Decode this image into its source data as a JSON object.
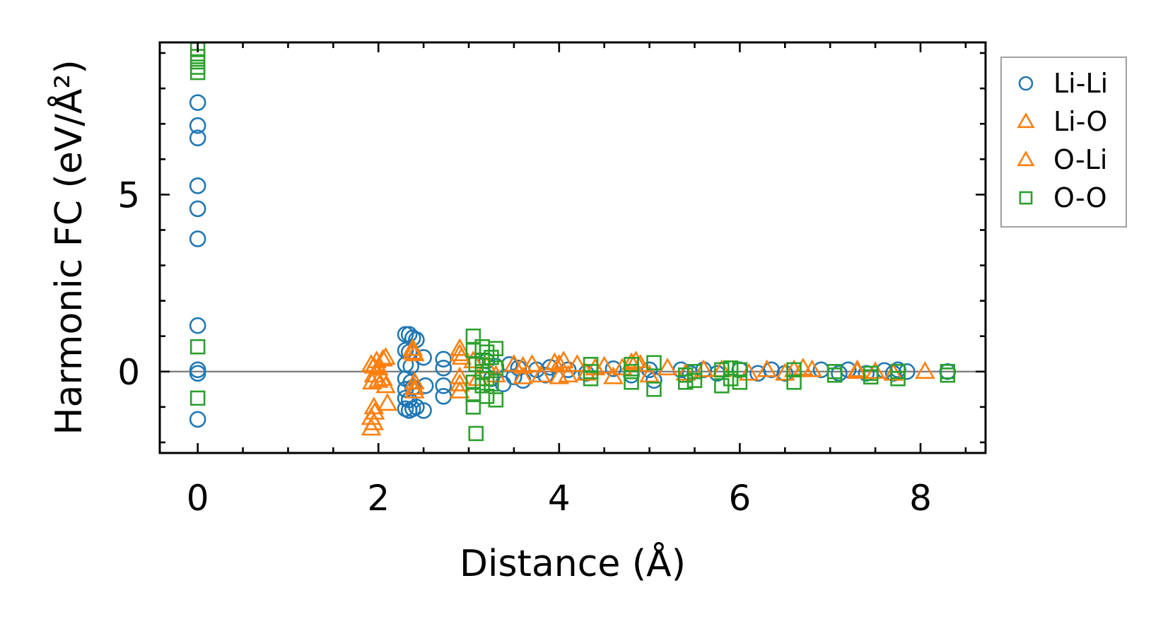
{
  "chart_data": {
    "type": "scatter",
    "title": "",
    "xlabel": "Distance (Å)",
    "ylabel": "Harmonic FC (eV/Å²)",
    "xlim": [
      -0.42,
      8.72
    ],
    "ylim": [
      -2.3,
      9.3
    ],
    "xticks": [
      "0",
      "2",
      "4",
      "6",
      "8"
    ],
    "yticks": [
      "0",
      "5"
    ],
    "grid": false,
    "zero_line": true,
    "legend_position": "outside-right",
    "colors": {
      "blue": "#1f77b4",
      "orange": "#ff7f0e",
      "green": "#2ca02c",
      "zero": "#808080"
    },
    "series": [
      {
        "name": "Li-Li",
        "marker": "circle",
        "color": "#1f77b4",
        "points": [
          [
            0,
            7.6
          ],
          [
            0,
            6.95
          ],
          [
            0,
            6.6
          ],
          [
            0,
            5.25
          ],
          [
            0,
            4.6
          ],
          [
            0,
            3.75
          ],
          [
            0,
            1.3
          ],
          [
            0,
            0.05
          ],
          [
            0,
            -0.05
          ],
          [
            0,
            -1.35
          ],
          [
            2.3,
            1.05
          ],
          [
            2.34,
            1.05
          ],
          [
            2.38,
            0.95
          ],
          [
            2.42,
            0.9
          ],
          [
            2.3,
            0.6
          ],
          [
            2.34,
            0.55
          ],
          [
            2.3,
            0.2
          ],
          [
            2.36,
            0.15
          ],
          [
            2.3,
            -0.2
          ],
          [
            2.36,
            -0.3
          ],
          [
            2.3,
            -0.5
          ],
          [
            2.38,
            -0.45
          ],
          [
            2.3,
            -0.75
          ],
          [
            2.34,
            -0.8
          ],
          [
            2.3,
            -1.05
          ],
          [
            2.34,
            -1.1
          ],
          [
            2.38,
            -1.05
          ],
          [
            2.42,
            -1.0
          ],
          [
            2.5,
            0.4
          ],
          [
            2.52,
            -0.4
          ],
          [
            2.5,
            -1.1
          ],
          [
            2.72,
            0.35
          ],
          [
            2.72,
            0.1
          ],
          [
            2.72,
            -0.4
          ],
          [
            2.72,
            -0.7
          ],
          [
            3.2,
            0.3
          ],
          [
            3.25,
            -0.2
          ],
          [
            3.3,
            0.15
          ],
          [
            3.38,
            -0.35
          ],
          [
            3.45,
            0.2
          ],
          [
            3.5,
            -0.15
          ],
          [
            3.55,
            0.1
          ],
          [
            3.6,
            -0.25
          ],
          [
            3.75,
            0.05
          ],
          [
            3.85,
            -0.1
          ],
          [
            3.9,
            0.12
          ],
          [
            4.1,
            0.05
          ],
          [
            4.3,
            -0.05
          ],
          [
            4.6,
            0.08
          ],
          [
            4.8,
            -0.1
          ],
          [
            5.0,
            0.05
          ],
          [
            5.05,
            -0.25
          ],
          [
            5.35,
            0.05
          ],
          [
            5.45,
            -0.05
          ],
          [
            5.6,
            0.05
          ],
          [
            5.75,
            -0.05
          ],
          [
            6.0,
            0.05
          ],
          [
            6.2,
            -0.05
          ],
          [
            6.35,
            0.05
          ],
          [
            6.5,
            -0.05
          ],
          [
            6.9,
            0.05
          ],
          [
            7.1,
            -0.05
          ],
          [
            7.2,
            0.05
          ],
          [
            7.4,
            -0.05
          ],
          [
            7.6,
            0.03
          ],
          [
            7.7,
            -0.05
          ],
          [
            7.75,
            0.05
          ],
          [
            7.85,
            0.0
          ],
          [
            8.3,
            0.0
          ]
        ]
      },
      {
        "name": "Li-O",
        "marker": "triangle",
        "color": "#ff7f0e",
        "points": [
          [
            1.92,
            0.2
          ],
          [
            1.95,
            -0.1
          ],
          [
            1.98,
            0.3
          ],
          [
            1.93,
            -0.3
          ],
          [
            1.95,
            -1.0
          ],
          [
            1.92,
            -1.3
          ],
          [
            1.95,
            -1.45
          ],
          [
            1.92,
            -1.6
          ],
          [
            2.0,
            0.1
          ],
          [
            2.05,
            -0.2
          ],
          [
            2.08,
            0.4
          ],
          [
            2.08,
            -0.4
          ],
          [
            2.1,
            -0.9
          ],
          [
            2.38,
            0.65
          ],
          [
            2.4,
            0.5
          ],
          [
            2.4,
            -0.3
          ],
          [
            2.4,
            -0.55
          ],
          [
            2.9,
            0.65
          ],
          [
            2.9,
            -0.15
          ],
          [
            2.9,
            -0.55
          ],
          [
            2.92,
            0.4
          ],
          [
            3.05,
            0.3
          ],
          [
            3.1,
            -0.2
          ],
          [
            3.2,
            0.15
          ],
          [
            3.3,
            -0.1
          ],
          [
            3.5,
            0.2
          ],
          [
            3.6,
            -0.15
          ],
          [
            3.7,
            0.2
          ],
          [
            3.8,
            -0.1
          ],
          [
            3.95,
            0.25
          ],
          [
            4.0,
            -0.15
          ],
          [
            4.05,
            0.3
          ],
          [
            4.1,
            -0.1
          ],
          [
            4.2,
            0.2
          ],
          [
            4.3,
            -0.05
          ],
          [
            4.5,
            0.15
          ],
          [
            4.6,
            -0.15
          ],
          [
            4.7,
            0.1
          ],
          [
            4.85,
            0.3
          ],
          [
            4.9,
            0.2
          ],
          [
            5.0,
            -0.1
          ],
          [
            5.2,
            0.1
          ],
          [
            5.4,
            -0.05
          ],
          [
            5.8,
            0.05
          ],
          [
            6.1,
            -0.05
          ],
          [
            6.3,
            0.05
          ],
          [
            6.5,
            -0.05
          ],
          [
            6.7,
            0.1
          ],
          [
            6.8,
            0.05
          ],
          [
            7.3,
            0.05
          ],
          [
            7.5,
            0.0
          ],
          [
            7.7,
            -0.05
          ],
          [
            8.05,
            0.0
          ]
        ]
      },
      {
        "name": "O-Li",
        "marker": "triangle",
        "color": "#ff7f0e",
        "points": [
          [
            1.95,
            0.15
          ],
          [
            2.0,
            -0.25
          ],
          [
            1.96,
            -1.15
          ],
          [
            2.05,
            0.35
          ],
          [
            2.38,
            0.55
          ],
          [
            2.4,
            -0.45
          ],
          [
            2.9,
            0.5
          ],
          [
            2.9,
            -0.35
          ],
          [
            3.6,
            0.15
          ],
          [
            4.0,
            0.2
          ],
          [
            4.4,
            0.1
          ],
          [
            4.8,
            0.25
          ],
          [
            5.6,
            0.05
          ],
          [
            6.6,
            0.05
          ],
          [
            7.3,
            0.0
          ]
        ]
      },
      {
        "name": "O-O",
        "marker": "square",
        "color": "#2ca02c",
        "points": [
          [
            0,
            9.1
          ],
          [
            0,
            8.9
          ],
          [
            0,
            8.75
          ],
          [
            0,
            8.6
          ],
          [
            0,
            8.45
          ],
          [
            0,
            0.7
          ],
          [
            0,
            -0.75
          ],
          [
            3.05,
            1.0
          ],
          [
            3.05,
            0.6
          ],
          [
            3.08,
            0.2
          ],
          [
            3.05,
            -0.3
          ],
          [
            3.05,
            -0.65
          ],
          [
            3.05,
            -1.0
          ],
          [
            3.08,
            -1.75
          ],
          [
            3.15,
            0.7
          ],
          [
            3.15,
            0.3
          ],
          [
            3.15,
            0.0
          ],
          [
            3.15,
            -0.4
          ],
          [
            3.2,
            0.55
          ],
          [
            3.2,
            -0.2
          ],
          [
            3.2,
            -0.7
          ],
          [
            3.25,
            0.4
          ],
          [
            3.25,
            -0.35
          ],
          [
            3.3,
            0.65
          ],
          [
            3.3,
            0.1
          ],
          [
            3.3,
            -0.8
          ],
          [
            4.35,
            0.2
          ],
          [
            4.35,
            0.0
          ],
          [
            4.35,
            -0.2
          ],
          [
            4.8,
            0.2
          ],
          [
            4.8,
            0.0
          ],
          [
            4.8,
            -0.3
          ],
          [
            5.05,
            0.25
          ],
          [
            5.05,
            -0.5
          ],
          [
            5.4,
            -0.1
          ],
          [
            5.4,
            -0.3
          ],
          [
            5.5,
            0.0
          ],
          [
            5.5,
            -0.25
          ],
          [
            5.8,
            0.05
          ],
          [
            5.8,
            -0.4
          ],
          [
            5.9,
            0.1
          ],
          [
            5.9,
            -0.2
          ],
          [
            6.0,
            0.05
          ],
          [
            6.0,
            -0.3
          ],
          [
            6.6,
            0.05
          ],
          [
            6.6,
            -0.3
          ],
          [
            7.05,
            0.0
          ],
          [
            7.05,
            -0.1
          ],
          [
            7.45,
            -0.05
          ],
          [
            7.45,
            -0.15
          ],
          [
            7.75,
            0.0
          ],
          [
            7.75,
            -0.2
          ],
          [
            8.3,
            0.0
          ],
          [
            8.3,
            -0.1
          ]
        ]
      }
    ]
  }
}
